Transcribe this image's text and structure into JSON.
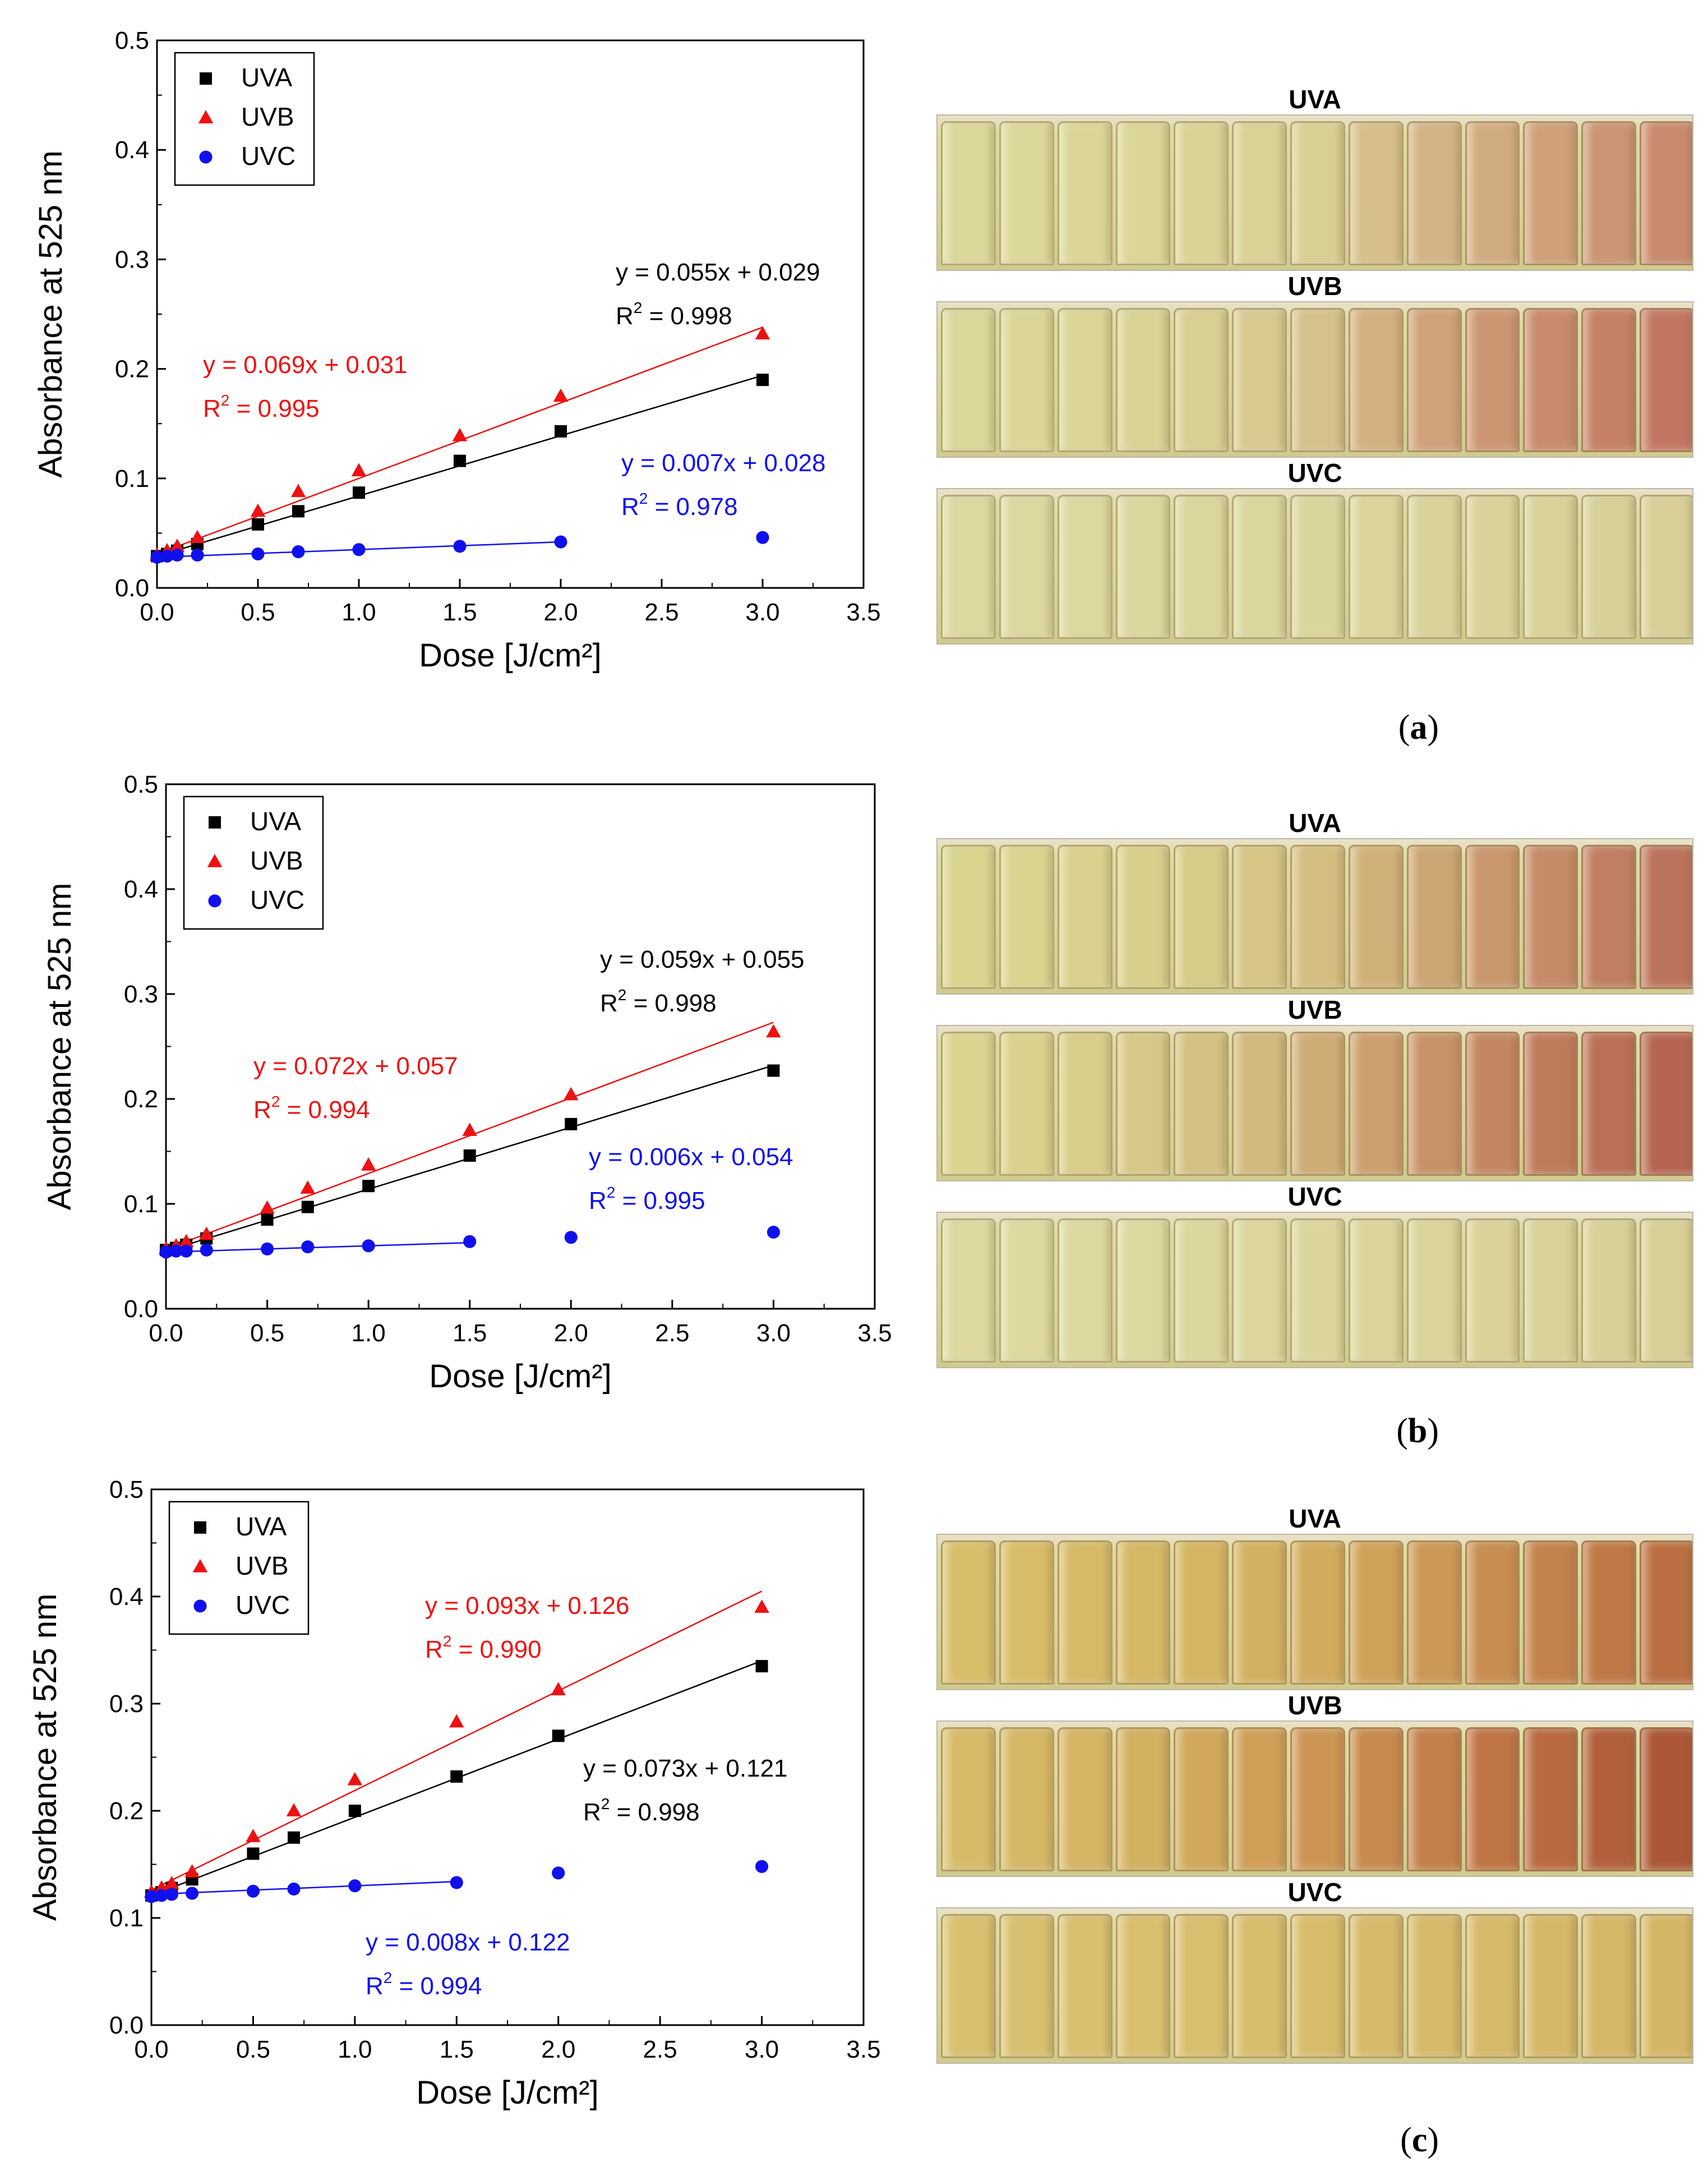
{
  "colors": {
    "UVA": "#000000",
    "UVB": "#ee1111",
    "UVC": "#1010ee"
  },
  "chart_data": [
    {
      "type": "scatter",
      "panel": "a",
      "xlabel": "Dose [J/cm²]",
      "ylabel": "Absorbance at 525 nm",
      "xlim": [
        0,
        3.5
      ],
      "ylim": [
        0,
        0.5
      ],
      "xticks": [
        "0.0",
        "0.5",
        "1.0",
        "1.5",
        "2.0",
        "2.5",
        "3.0",
        "3.5"
      ],
      "yticks": [
        "0.0",
        "0.1",
        "0.2",
        "0.3",
        "0.4",
        "0.5"
      ],
      "legend": "top-left",
      "series": [
        {
          "name": "UVA",
          "marker": "square",
          "x": [
            0,
            0.05,
            0.1,
            0.2,
            0.5,
            0.7,
            1.0,
            1.5,
            2.0,
            3.0
          ],
          "y": [
            0.029,
            0.031,
            0.034,
            0.04,
            0.058,
            0.07,
            0.087,
            0.116,
            0.143,
            0.19
          ],
          "fit": {
            "slope": 0.055,
            "intercept": 0.029,
            "x_end": 3.0
          },
          "equation": "y = 0.055x + 0.029",
          "r2": "= 0.998"
        },
        {
          "name": "UVB",
          "marker": "triangle",
          "x": [
            0,
            0.05,
            0.1,
            0.2,
            0.5,
            0.7,
            1.0,
            1.5,
            2.0,
            3.0
          ],
          "y": [
            0.03,
            0.034,
            0.038,
            0.046,
            0.07,
            0.088,
            0.107,
            0.139,
            0.175,
            0.232
          ],
          "fit": {
            "slope": 0.069,
            "intercept": 0.031,
            "x_end": 3.0
          },
          "equation": "y = 0.069x + 0.031",
          "r2": "= 0.995"
        },
        {
          "name": "UVC",
          "marker": "circle",
          "x": [
            0,
            0.05,
            0.1,
            0.2,
            0.5,
            0.7,
            1.0,
            1.5,
            2.0,
            3.0
          ],
          "y": [
            0.028,
            0.029,
            0.03,
            0.03,
            0.031,
            0.033,
            0.035,
            0.038,
            0.042,
            0.046
          ],
          "fit": {
            "slope": 0.007,
            "intercept": 0.028,
            "x_end": 2.0
          },
          "equation": "y = 0.007x + 0.028",
          "r2": "= 0.978"
        }
      ]
    },
    {
      "type": "scatter",
      "panel": "b",
      "xlabel": "Dose [J/cm²]",
      "ylabel": "Absorbance at 525 nm",
      "xlim": [
        0,
        3.5
      ],
      "ylim": [
        0,
        0.5
      ],
      "xticks": [
        "0.0",
        "0.5",
        "1.0",
        "1.5",
        "2.0",
        "2.5",
        "3.0",
        "3.5"
      ],
      "yticks": [
        "0.0",
        "0.1",
        "0.2",
        "0.3",
        "0.4",
        "0.5"
      ],
      "legend": "top-left",
      "series": [
        {
          "name": "UVA",
          "marker": "square",
          "x": [
            0,
            0.05,
            0.1,
            0.2,
            0.5,
            0.7,
            1.0,
            1.5,
            2.0,
            3.0
          ],
          "y": [
            0.056,
            0.058,
            0.061,
            0.067,
            0.085,
            0.097,
            0.117,
            0.146,
            0.176,
            0.227
          ],
          "fit": {
            "slope": 0.059,
            "intercept": 0.055,
            "x_end": 3.0
          },
          "equation": "y = 0.059x + 0.055",
          "r2": "= 0.998"
        },
        {
          "name": "UVB",
          "marker": "triangle",
          "x": [
            0,
            0.05,
            0.1,
            0.2,
            0.5,
            0.7,
            1.0,
            1.5,
            2.0,
            3.0
          ],
          "y": [
            0.057,
            0.06,
            0.064,
            0.071,
            0.096,
            0.115,
            0.137,
            0.17,
            0.204,
            0.264
          ],
          "fit": {
            "slope": 0.072,
            "intercept": 0.057,
            "x_end": 3.0
          },
          "equation": "y = 0.072x + 0.057",
          "r2": "= 0.994"
        },
        {
          "name": "UVC",
          "marker": "circle",
          "x": [
            0,
            0.05,
            0.1,
            0.2,
            0.5,
            0.7,
            1.0,
            1.5,
            2.0,
            3.0
          ],
          "y": [
            0.054,
            0.055,
            0.055,
            0.056,
            0.057,
            0.059,
            0.06,
            0.064,
            0.068,
            0.073
          ],
          "fit": {
            "slope": 0.006,
            "intercept": 0.054,
            "x_end": 1.5
          },
          "equation": "y = 0.006x + 0.054",
          "r2": "= 0.995"
        }
      ]
    },
    {
      "type": "scatter",
      "panel": "c",
      "xlabel": "Dose [J/cm²]",
      "ylabel": "Absorbance at 525 nm",
      "xlim": [
        0,
        3.5
      ],
      "ylim": [
        0,
        0.5
      ],
      "xticks": [
        "0.0",
        "0.5",
        "1.0",
        "1.5",
        "2.0",
        "2.5",
        "3.0",
        "3.5"
      ],
      "yticks": [
        "0.0",
        "0.1",
        "0.2",
        "0.3",
        "0.4",
        "0.5"
      ],
      "legend": "top-left",
      "series": [
        {
          "name": "UVA",
          "marker": "square",
          "x": [
            0,
            0.05,
            0.1,
            0.2,
            0.5,
            0.7,
            1.0,
            1.5,
            2.0,
            3.0
          ],
          "y": [
            0.121,
            0.124,
            0.128,
            0.136,
            0.16,
            0.175,
            0.2,
            0.232,
            0.27,
            0.335
          ],
          "fit": {
            "slope": 0.073,
            "intercept": 0.121,
            "x_end": 3.0
          },
          "equation": "y = 0.073x + 0.121",
          "r2": "= 0.998"
        },
        {
          "name": "UVB",
          "marker": "triangle",
          "x": [
            0,
            0.05,
            0.1,
            0.2,
            0.5,
            0.7,
            1.0,
            1.5,
            2.0,
            3.0
          ],
          "y": [
            0.124,
            0.128,
            0.132,
            0.143,
            0.176,
            0.2,
            0.229,
            0.283,
            0.313,
            0.39
          ],
          "fit": {
            "slope": 0.093,
            "intercept": 0.126,
            "x_end": 3.0
          },
          "equation": "y = 0.093x + 0.126",
          "r2": "= 0.990"
        },
        {
          "name": "UVC",
          "marker": "circle",
          "x": [
            0,
            0.05,
            0.1,
            0.2,
            0.5,
            0.7,
            1.0,
            1.5,
            2.0,
            3.0
          ],
          "y": [
            0.12,
            0.121,
            0.122,
            0.123,
            0.125,
            0.127,
            0.13,
            0.133,
            0.142,
            0.148
          ],
          "fit": {
            "slope": 0.008,
            "intercept": 0.122,
            "x_end": 1.5
          },
          "equation": "y = 0.008x + 0.122",
          "r2": "= 0.994"
        }
      ]
    }
  ],
  "panels": [
    {
      "label": "a",
      "strips": [
        "UVA",
        "UVB",
        "UVC"
      ]
    },
    {
      "label": "b",
      "strips": [
        "UVA",
        "UVB",
        "UVC"
      ]
    },
    {
      "label": "c",
      "strips": [
        "UVA",
        "UVB",
        "UVC"
      ]
    }
  ],
  "vials": {
    "count": 13,
    "tints": {
      "a": {
        "UVA": [
          "#dcd79a",
          "#dcd79a",
          "#dbd698",
          "#dbd597",
          "#dad396",
          "#d9d195",
          "#d8cf93",
          "#d6bf8a",
          "#d3b386",
          "#d1ab80",
          "#cf9f79",
          "#cb9474",
          "#c98a6e"
        ],
        "UVB": [
          "#dcd79a",
          "#dbd698",
          "#dad496",
          "#d9d295",
          "#d8cf93",
          "#d7c990",
          "#d5c18b",
          "#d2b081",
          "#cfa27a",
          "#cc9673",
          "#c98a6c",
          "#c68066",
          "#c27662"
        ],
        "UVC": [
          "#dcd8a0",
          "#dcd8a0",
          "#dcd8a0",
          "#dbd79f",
          "#dbd69e",
          "#dbd69e",
          "#dad59d",
          "#dad49c",
          "#d9d39b",
          "#d9d29a",
          "#d8d199",
          "#d8d098",
          "#d7cf97"
        ]
      },
      "b": {
        "UVA": [
          "#dad48f",
          "#dad48f",
          "#d9d18d",
          "#d8cf8b",
          "#d7cb88",
          "#d6c585",
          "#d4bd80",
          "#d1b17a",
          "#cda474",
          "#c9976d",
          "#c58a67",
          "#c17e61",
          "#bc735c"
        ],
        "UVB": [
          "#dad48f",
          "#d9d18c",
          "#d8cd89",
          "#d6c886",
          "#d4c182",
          "#d2b87c",
          "#cfac76",
          "#cc9f6f",
          "#c89268",
          "#c48662",
          "#bf7a5c",
          "#ba6f56",
          "#b56552"
        ],
        "UVC": [
          "#ddd9a0",
          "#ddd9a0",
          "#ddd8a0",
          "#dcd89f",
          "#dcd79e",
          "#dcd69d",
          "#dbd59c",
          "#dbd49b",
          "#dad39a",
          "#dad299",
          "#d9d198",
          "#d9d097",
          "#d8cf96"
        ]
      },
      "c": {
        "UVA": [
          "#d8bd6a",
          "#d8bc69",
          "#d7ba68",
          "#d6b866",
          "#d5b564",
          "#d4b162",
          "#d2ab5f",
          "#cfa25a",
          "#cc9855",
          "#c88d50",
          "#c4824b",
          "#c07846",
          "#bb6e42"
        ],
        "UVB": [
          "#d7bb68",
          "#d6b866",
          "#d5b463",
          "#d3af60",
          "#d1a85c",
          "#cf9f58",
          "#cc9553",
          "#c88a4e",
          "#c47f49",
          "#bf7444",
          "#b96a40",
          "#b3603c",
          "#ac5738"
        ],
        "UVC": [
          "#d9c070",
          "#d9c070",
          "#d9bf6f",
          "#d9bf6f",
          "#d8be6e",
          "#d8bd6d",
          "#d8bc6c",
          "#d7bb6b",
          "#d7ba6a",
          "#d6b969",
          "#d6b868",
          "#d5b767",
          "#d5b666"
        ]
      }
    }
  }
}
